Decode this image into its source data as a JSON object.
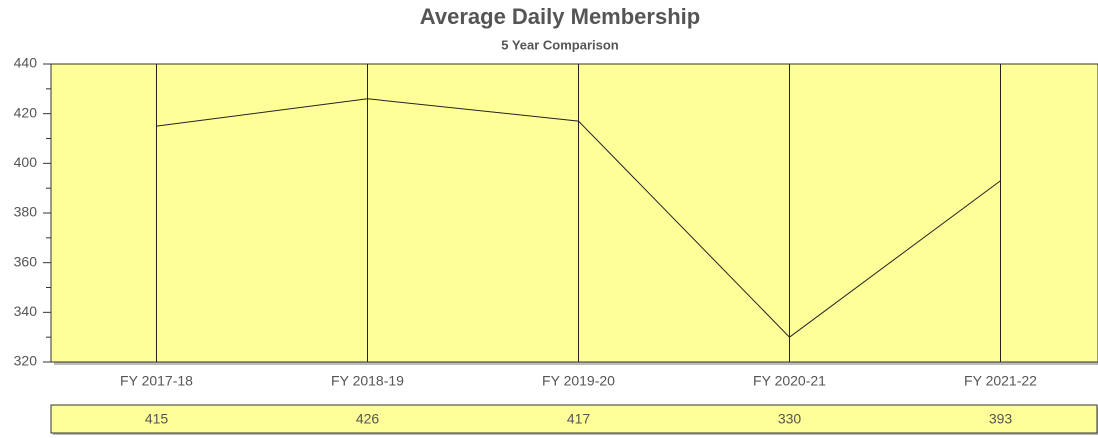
{
  "chart_data": {
    "type": "line",
    "title": "Average Daily Membership",
    "subtitle": "5 Year Comparison",
    "categories": [
      "FY 2017-18",
      "FY 2018-19",
      "FY 2019-20",
      "FY 2020-21",
      "FY 2021-22"
    ],
    "series": [
      {
        "name": "Average Daily Membership",
        "color": "#222222",
        "values": [
          415,
          426,
          417,
          330,
          393
        ]
      }
    ],
    "ylim": [
      320,
      440
    ],
    "yticks": [
      320,
      340,
      360,
      380,
      400,
      420,
      440
    ],
    "grid": true,
    "background": "#ffff99"
  }
}
